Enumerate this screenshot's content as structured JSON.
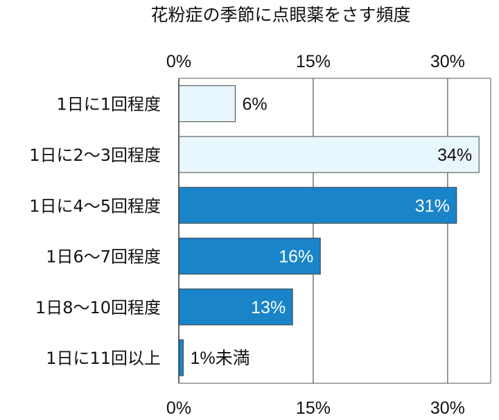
{
  "chart_data": {
    "type": "bar",
    "orientation": "horizontal",
    "title": "花粉症の季節に点眼薬をさす頻度",
    "xlabel": "",
    "ylabel": "",
    "xlim": [
      0,
      35
    ],
    "ticks": [
      0,
      15,
      30
    ],
    "tick_labels": [
      "0%",
      "15%",
      "30%"
    ],
    "grid": true,
    "categories": [
      "1日に1回程度",
      "1日に2〜3回程度",
      "1日に4〜5回程度",
      "1日6〜7回程度",
      "1日8〜10回程度",
      "1日に11回以上"
    ],
    "values": [
      6.3,
      33.5,
      31,
      15.8,
      12.7,
      0.5
    ],
    "value_labels": [
      "6%",
      "34%",
      "31%",
      "16%",
      "13%",
      "1%未満"
    ],
    "label_inside": [
      false,
      true,
      true,
      true,
      true,
      false
    ],
    "bar_colors": [
      "#e8f6fd",
      "#e8f6fd",
      "#1a84c9",
      "#1a84c9",
      "#1a84c9",
      "#1a84c9"
    ],
    "label_colors": [
      "#111111",
      "#111111",
      "#ffffff",
      "#ffffff",
      "#ffffff",
      "#111111"
    ]
  }
}
